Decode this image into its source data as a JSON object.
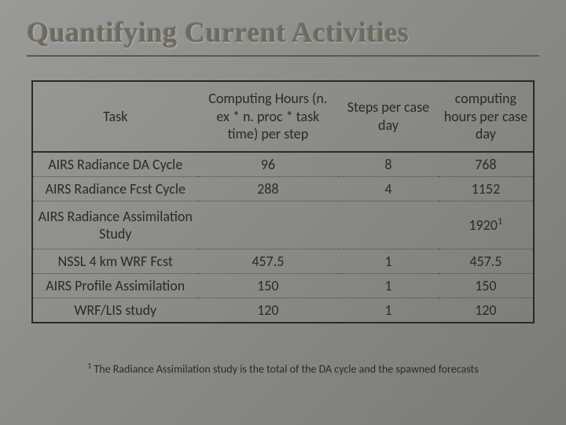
{
  "title": "Quantifying Current Activities",
  "table": {
    "headers": {
      "task": "Task",
      "hours": "Computing Hours (n. ex * n. proc * task time) per step",
      "steps": "Steps per case day",
      "total": "computing hours per case day"
    },
    "rows": [
      {
        "task": "AIRS Radiance DA Cycle",
        "hours": "96",
        "steps": "8",
        "total": "768"
      },
      {
        "task": "AIRS Radiance Fcst Cycle",
        "hours": "288",
        "steps": "4",
        "total": "1152"
      },
      {
        "task": "AIRS Radiance Assimilation Study",
        "hours": "",
        "steps": "",
        "total": "1920",
        "sup": "1"
      },
      {
        "task": "NSSL 4 km WRF Fcst",
        "hours": "457.5",
        "steps": "1",
        "total": "457.5"
      },
      {
        "task": "AIRS Profile Assimilation",
        "hours": "150",
        "steps": "1",
        "total": "150"
      },
      {
        "task": "WRF/LIS study",
        "hours": "120",
        "steps": "1",
        "total": "120"
      }
    ]
  },
  "footnote": {
    "sup": "1",
    "text": " The Radiance Assimilation study is the total of the DA cycle and the spawned forecasts"
  },
  "styling": {
    "background_gradient": [
      "#9a9a98",
      "#8a8a86",
      "#7a7a76"
    ],
    "title_color": "#6b6b5f",
    "border_color": "#2a2a2a",
    "text_color": "#2a2a2a",
    "title_fontsize": 36,
    "header_fontsize": 18,
    "cell_fontsize": 18,
    "footnote_fontsize": 14
  }
}
